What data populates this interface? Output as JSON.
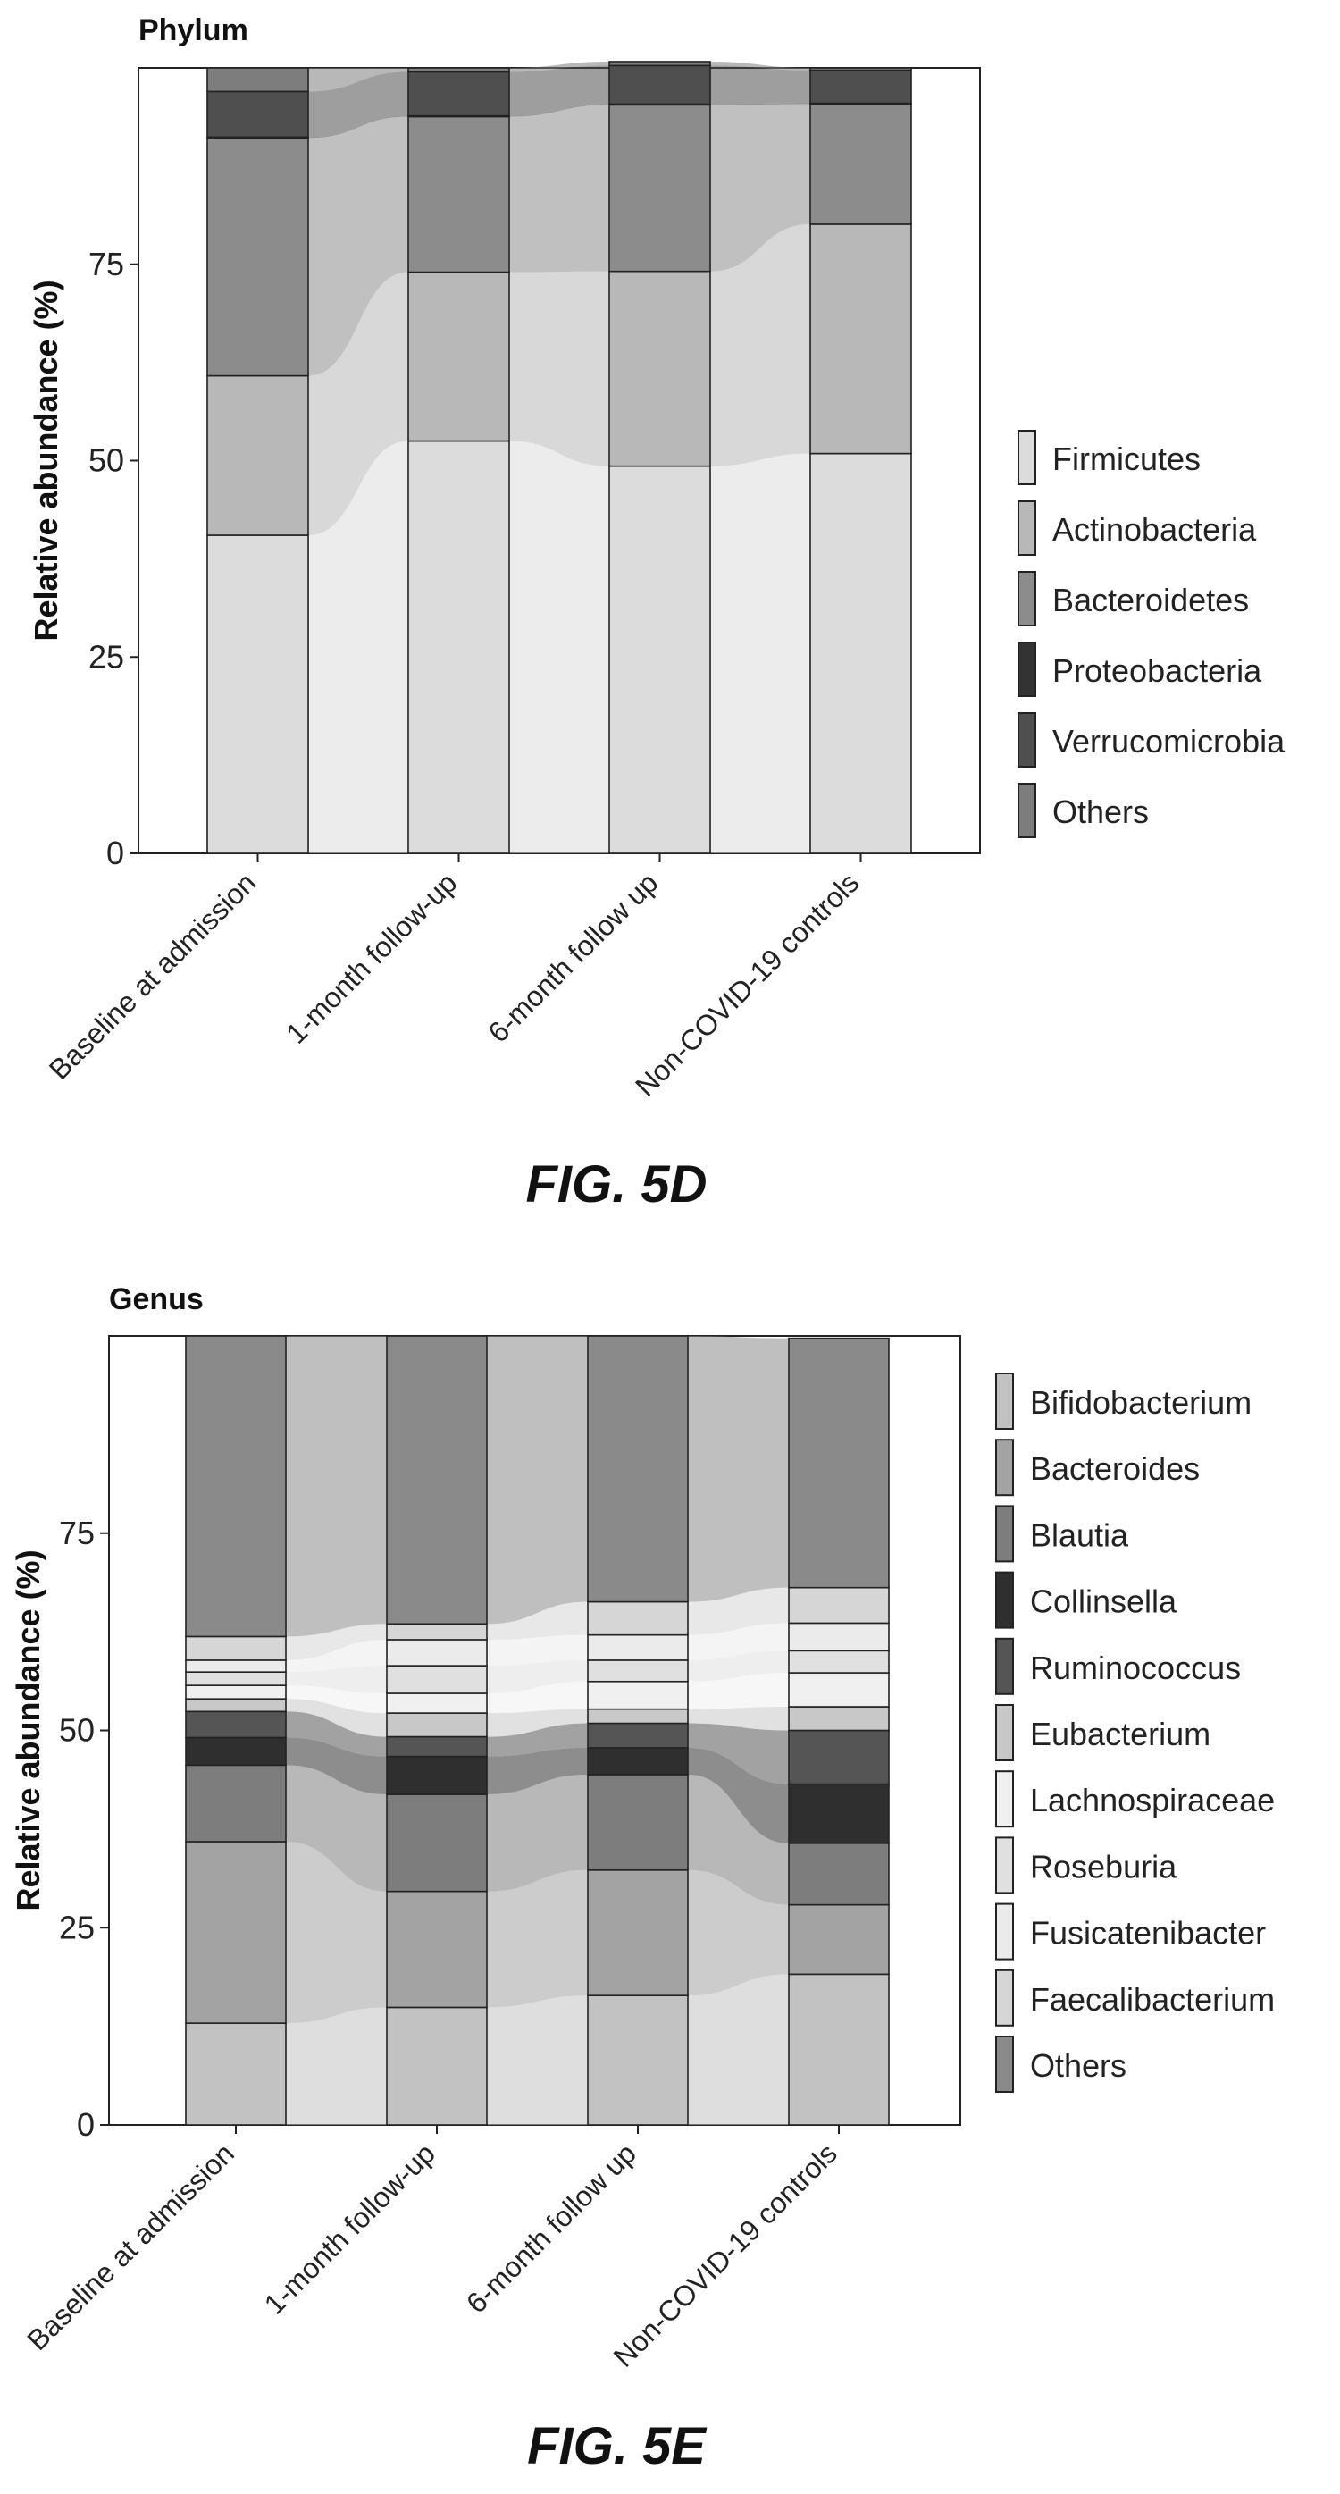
{
  "figures": [
    {
      "caption": "FIG. 5D",
      "chart_data": {
        "type": "bar",
        "title": "Phylum",
        "xlabel": "",
        "ylabel": "Relative abundance (%)",
        "ylim": [
          0,
          100
        ],
        "yticks": [
          0,
          25,
          50,
          75
        ],
        "categories": [
          "Baseline at admission",
          "1-month follow-up",
          "6-month follow up",
          "Non-COVID-19 controls"
        ],
        "stacked": true,
        "alluvial_connectors": true,
        "legend_position": "right",
        "series": [
          {
            "name": "Firmicutes",
            "color": "#dcdcdc",
            "values": [
              40.5,
              52.5,
              49.3,
              50.9
            ]
          },
          {
            "name": "Actinobacteria",
            "color": "#b8b8b8",
            "values": [
              20.3,
              21.5,
              24.8,
              29.2
            ]
          },
          {
            "name": "Bacteroidetes",
            "color": "#8c8c8c",
            "values": [
              30.3,
              19.8,
              21.2,
              15.3
            ]
          },
          {
            "name": "Proteobacteria",
            "color": "#333333",
            "values": [
              0.1,
              0.1,
              0.1,
              0.1
            ]
          },
          {
            "name": "Verrucomicrobia",
            "color": "#4f4f4f",
            "values": [
              5.8,
              5.6,
              4.9,
              4.2
            ]
          },
          {
            "name": "Others",
            "color": "#7d7d7d",
            "values": [
              3.0,
              0.5,
              0.5,
              0.3
            ]
          }
        ]
      }
    },
    {
      "caption": "FIG. 5E",
      "chart_data": {
        "type": "bar",
        "title": "Genus",
        "xlabel": "",
        "ylabel": "Relative abundance (%)",
        "ylim": [
          0,
          100
        ],
        "yticks": [
          0,
          25,
          50,
          75
        ],
        "categories": [
          "Baseline at admission",
          "1-month follow-up",
          "6-month follow up",
          "Non-COVID-19 controls"
        ],
        "stacked": true,
        "alluvial_connectors": true,
        "legend_position": "right",
        "series": [
          {
            "name": "Bifidobacterium",
            "color": "#c2c2c2",
            "values": [
              12.9,
              14.9,
              16.4,
              19.1
            ]
          },
          {
            "name": "Bacteroides",
            "color": "#a3a3a3",
            "values": [
              23.0,
              14.7,
              15.9,
              8.8
            ]
          },
          {
            "name": "Blautia",
            "color": "#7d7d7d",
            "values": [
              9.7,
              12.3,
              12.1,
              7.8
            ]
          },
          {
            "name": "Collinsella",
            "color": "#2f2f2f",
            "values": [
              3.5,
              4.8,
              3.4,
              7.5
            ]
          },
          {
            "name": "Ruminococcus",
            "color": "#555555",
            "values": [
              3.3,
              2.5,
              3.1,
              6.8
            ]
          },
          {
            "name": "Eubacterium",
            "color": "#c8c8c8",
            "values": [
              1.6,
              3.0,
              1.8,
              3.0
            ]
          },
          {
            "name": "Lachnospiraceae",
            "color": "#f0f0f0",
            "values": [
              1.7,
              2.5,
              3.5,
              4.3
            ]
          },
          {
            "name": "Roseburia",
            "color": "#e0e0e0",
            "values": [
              1.7,
              3.5,
              2.7,
              2.8
            ]
          },
          {
            "name": "Fusicatenibacter",
            "color": "#ebebeb",
            "values": [
              1.5,
              3.3,
              3.2,
              3.5
            ]
          },
          {
            "name": "Faecalibacterium",
            "color": "#d6d6d6",
            "values": [
              3.0,
              2.0,
              4.2,
              4.5
            ]
          },
          {
            "name": "Others",
            "color": "#8a8a8a",
            "values": [
              38.1,
              36.5,
              33.7,
              31.6
            ]
          }
        ]
      }
    }
  ]
}
